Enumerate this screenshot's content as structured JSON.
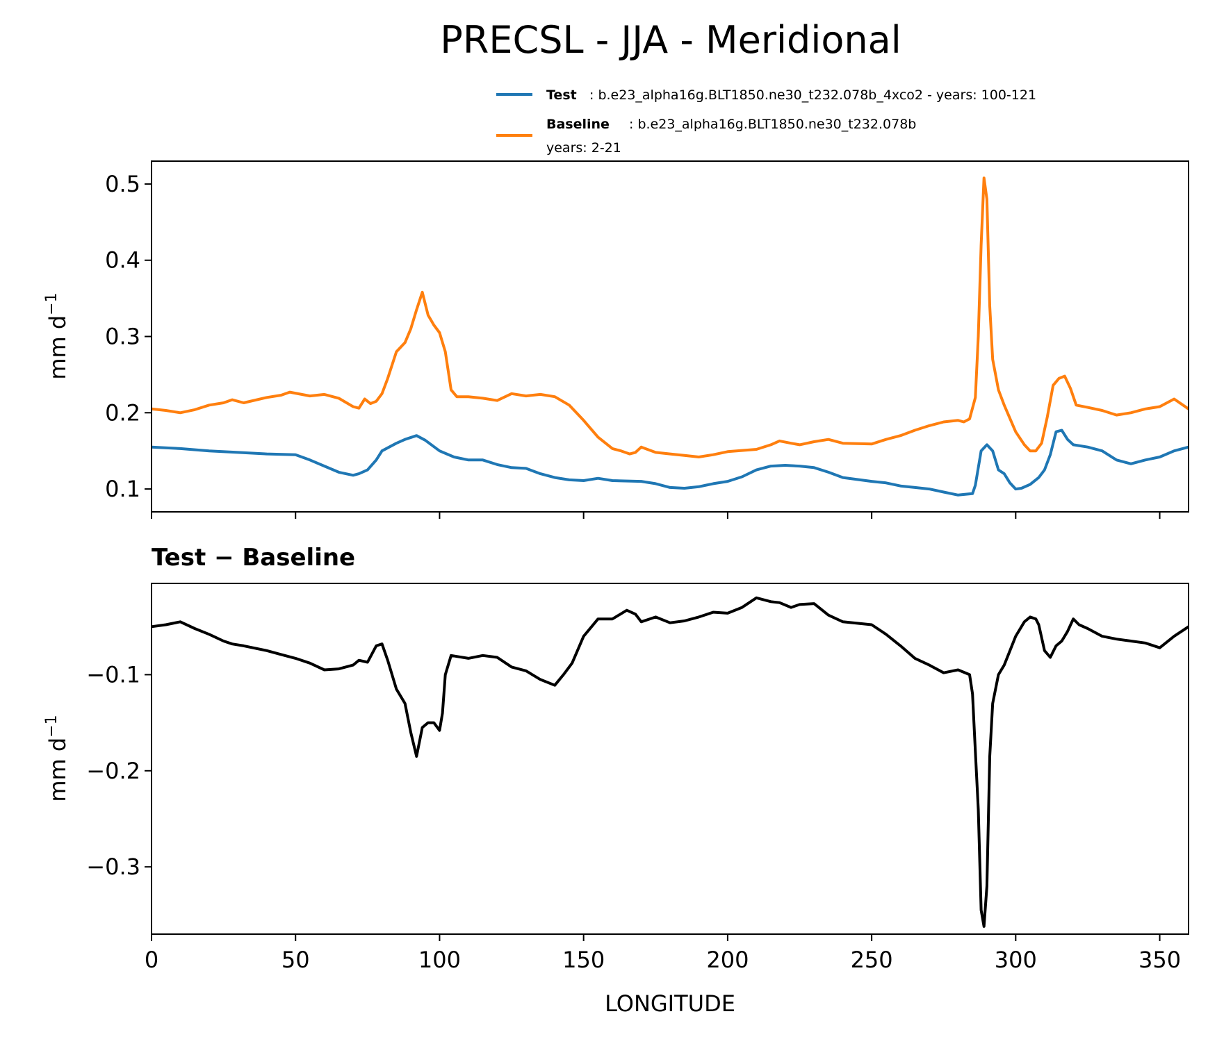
{
  "chart_data": [
    {
      "type": "line",
      "title": "PRECSL - JJA - Meridional",
      "xlabel": "",
      "ylabel": "mm d",
      "ylabel_sup": "−1",
      "xlim": [
        0,
        360
      ],
      "ylim": [
        0.07,
        0.53
      ],
      "yticks": [
        0.1,
        0.2,
        0.3,
        0.4,
        0.5
      ],
      "ytick_labels": [
        "0.1",
        "0.2",
        "0.3",
        "0.4",
        "0.5"
      ],
      "xticks": [
        0,
        50,
        100,
        150,
        200,
        250,
        300,
        350
      ],
      "legend": {
        "placement": "above-right",
        "entries": [
          {
            "name": "Test",
            "text": ": b.e23_alpha16g.BLT1850.ne30_t232.078b_4xco2 - years: 100-121",
            "text2": "",
            "color": "#1f77b4"
          },
          {
            "name": "Baseline",
            "text": ": b.e23_alpha16g.BLT1850.ne30_t232.078b",
            "text2": "years: 2-21",
            "color": "#ff7f0e"
          }
        ]
      },
      "series": [
        {
          "name": "Test",
          "color": "#1f77b4",
          "x": [
            0,
            10,
            20,
            30,
            40,
            50,
            55,
            60,
            65,
            70,
            72,
            75,
            78,
            80,
            85,
            88,
            92,
            95,
            100,
            105,
            110,
            115,
            120,
            125,
            130,
            135,
            140,
            145,
            150,
            155,
            160,
            170,
            175,
            180,
            185,
            190,
            195,
            200,
            205,
            210,
            215,
            220,
            225,
            230,
            235,
            240,
            250,
            255,
            260,
            265,
            270,
            275,
            280,
            285,
            286,
            288,
            290,
            292,
            294,
            296,
            298,
            300,
            302,
            305,
            308,
            310,
            312,
            314,
            316,
            318,
            320,
            325,
            330,
            335,
            340,
            345,
            350,
            355,
            360
          ],
          "y": [
            0.155,
            0.153,
            0.15,
            0.148,
            0.146,
            0.145,
            0.138,
            0.13,
            0.122,
            0.118,
            0.12,
            0.125,
            0.138,
            0.15,
            0.16,
            0.165,
            0.17,
            0.164,
            0.15,
            0.142,
            0.138,
            0.138,
            0.132,
            0.128,
            0.127,
            0.12,
            0.115,
            0.112,
            0.111,
            0.114,
            0.111,
            0.11,
            0.107,
            0.102,
            0.101,
            0.103,
            0.107,
            0.11,
            0.116,
            0.125,
            0.13,
            0.131,
            0.13,
            0.128,
            0.122,
            0.115,
            0.11,
            0.108,
            0.104,
            0.102,
            0.1,
            0.096,
            0.092,
            0.094,
            0.105,
            0.15,
            0.158,
            0.15,
            0.125,
            0.12,
            0.108,
            0.1,
            0.101,
            0.106,
            0.115,
            0.125,
            0.145,
            0.175,
            0.177,
            0.165,
            0.158,
            0.155,
            0.15,
            0.138,
            0.133,
            0.138,
            0.142,
            0.15,
            0.155
          ]
        },
        {
          "name": "Baseline",
          "color": "#ff7f0e",
          "x": [
            0,
            5,
            10,
            15,
            20,
            25,
            28,
            32,
            40,
            45,
            48,
            55,
            60,
            65,
            70,
            72,
            74,
            76,
            78,
            80,
            82,
            85,
            88,
            90,
            92,
            94,
            96,
            98,
            100,
            102,
            104,
            106,
            110,
            115,
            120,
            125,
            130,
            135,
            140,
            145,
            150,
            155,
            160,
            163,
            166,
            168,
            170,
            175,
            180,
            185,
            190,
            195,
            200,
            210,
            215,
            218,
            222,
            225,
            230,
            235,
            240,
            250,
            255,
            260,
            265,
            270,
            275,
            280,
            282,
            284,
            286,
            287,
            288,
            289,
            290,
            291,
            292,
            294,
            296,
            300,
            303,
            305,
            307,
            309,
            311,
            313,
            315,
            317,
            319,
            321,
            325,
            330,
            335,
            340,
            345,
            350,
            355,
            360
          ],
          "y": [
            0.205,
            0.203,
            0.2,
            0.204,
            0.21,
            0.213,
            0.217,
            0.213,
            0.22,
            0.223,
            0.227,
            0.222,
            0.224,
            0.219,
            0.208,
            0.206,
            0.218,
            0.212,
            0.215,
            0.225,
            0.245,
            0.28,
            0.292,
            0.31,
            0.335,
            0.358,
            0.328,
            0.315,
            0.305,
            0.28,
            0.23,
            0.221,
            0.221,
            0.219,
            0.216,
            0.225,
            0.222,
            0.224,
            0.221,
            0.21,
            0.19,
            0.168,
            0.153,
            0.15,
            0.146,
            0.148,
            0.155,
            0.148,
            0.146,
            0.144,
            0.142,
            0.145,
            0.149,
            0.152,
            0.158,
            0.163,
            0.16,
            0.158,
            0.162,
            0.165,
            0.16,
            0.159,
            0.165,
            0.17,
            0.177,
            0.183,
            0.188,
            0.19,
            0.188,
            0.192,
            0.22,
            0.3,
            0.42,
            0.508,
            0.48,
            0.34,
            0.27,
            0.23,
            0.21,
            0.175,
            0.158,
            0.15,
            0.15,
            0.16,
            0.195,
            0.236,
            0.245,
            0.248,
            0.232,
            0.21,
            0.207,
            0.203,
            0.197,
            0.2,
            0.205,
            0.208,
            0.218,
            0.205
          ]
        }
      ]
    },
    {
      "type": "line",
      "title": "Test − Baseline",
      "xlabel": "LONGITUDE",
      "ylabel": "mm d",
      "ylabel_sup": "−1",
      "xlim": [
        0,
        360
      ],
      "ylim": [
        -0.37,
        -0.005
      ],
      "yticks": [
        -0.1,
        -0.2,
        -0.3
      ],
      "ytick_labels": [
        "−0.1",
        "−0.2",
        "−0.3"
      ],
      "xticks": [
        0,
        50,
        100,
        150,
        200,
        250,
        300,
        350
      ],
      "xtick_labels": [
        "0",
        "50",
        "100",
        "150",
        "200",
        "250",
        "300",
        "350"
      ],
      "series": [
        {
          "name": "Test − Baseline",
          "color": "#000000",
          "x": [
            0,
            5,
            10,
            15,
            20,
            25,
            28,
            32,
            40,
            45,
            50,
            55,
            60,
            65,
            70,
            72,
            75,
            78,
            80,
            82,
            85,
            88,
            90,
            92,
            94,
            96,
            98,
            100,
            101,
            102,
            104,
            106,
            110,
            115,
            120,
            125,
            130,
            135,
            140,
            143,
            146,
            150,
            155,
            160,
            165,
            168,
            170,
            175,
            180,
            185,
            190,
            195,
            200,
            205,
            210,
            215,
            218,
            222,
            225,
            230,
            235,
            240,
            250,
            255,
            260,
            265,
            270,
            275,
            280,
            284,
            285,
            286,
            287,
            288,
            289,
            290,
            291,
            292,
            294,
            296,
            300,
            303,
            305,
            307,
            308,
            310,
            312,
            314,
            316,
            318,
            320,
            322,
            325,
            330,
            335,
            340,
            345,
            350,
            355,
            360
          ],
          "y": [
            -0.05,
            -0.048,
            -0.045,
            -0.052,
            -0.058,
            -0.065,
            -0.068,
            -0.07,
            -0.075,
            -0.079,
            -0.083,
            -0.088,
            -0.095,
            -0.094,
            -0.09,
            -0.085,
            -0.087,
            -0.07,
            -0.068,
            -0.085,
            -0.115,
            -0.13,
            -0.16,
            -0.185,
            -0.155,
            -0.15,
            -0.15,
            -0.158,
            -0.14,
            -0.1,
            -0.08,
            -0.081,
            -0.083,
            -0.08,
            -0.082,
            -0.092,
            -0.096,
            -0.105,
            -0.111,
            -0.1,
            -0.088,
            -0.06,
            -0.042,
            -0.042,
            -0.033,
            -0.037,
            -0.045,
            -0.04,
            -0.046,
            -0.044,
            -0.04,
            -0.035,
            -0.036,
            -0.03,
            -0.02,
            -0.024,
            -0.025,
            -0.03,
            -0.027,
            -0.026,
            -0.038,
            -0.045,
            -0.048,
            -0.058,
            -0.07,
            -0.083,
            -0.09,
            -0.098,
            -0.095,
            -0.1,
            -0.12,
            -0.18,
            -0.24,
            -0.345,
            -0.362,
            -0.32,
            -0.185,
            -0.13,
            -0.1,
            -0.09,
            -0.06,
            -0.045,
            -0.04,
            -0.042,
            -0.048,
            -0.075,
            -0.082,
            -0.07,
            -0.065,
            -0.055,
            -0.042,
            -0.048,
            -0.052,
            -0.06,
            -0.063,
            -0.065,
            -0.067,
            -0.072,
            -0.06,
            -0.05
          ]
        }
      ]
    }
  ]
}
